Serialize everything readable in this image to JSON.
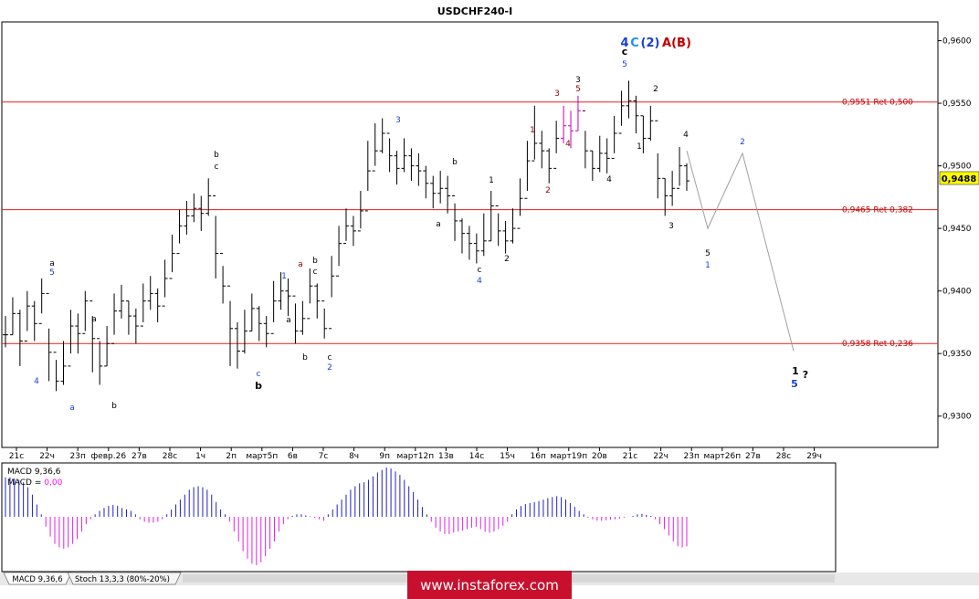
{
  "chart_data": {
    "type": "candlestick",
    "title": "USDCHF240-I",
    "current_price": "0,9488",
    "ylim": [
      0.9275,
      0.9615
    ],
    "y_ticks": [
      "0,9300",
      "0,9350",
      "0,9400",
      "0,9450",
      "0,9500",
      "0,9550",
      "0,9600"
    ],
    "x_ticks": [
      "21с",
      "22ч",
      "23п",
      "февр.26",
      "27в",
      "28с",
      "1ч",
      "2п",
      "март5п",
      "6в",
      "7с",
      "8ч",
      "9п",
      "март12п",
      "13в",
      "14с",
      "15ч",
      "16п",
      "март19п",
      "20в",
      "21с",
      "22ч",
      "23п",
      "март26п",
      "27в",
      "28с",
      "29ч"
    ],
    "fib_levels": [
      {
        "label": "0,9551 Ret 0,500",
        "value": 0.9551
      },
      {
        "label": "0,9465 Ret 0,382",
        "value": 0.9465
      },
      {
        "label": "0,9358 Ret 0,236",
        "value": 0.9358
      }
    ],
    "series": [
      {
        "closes": [
          0.9365,
          0.9382,
          0.936,
          0.9388,
          0.9374,
          0.9398,
          0.9351,
          0.9328,
          0.934,
          0.9372,
          0.9366,
          0.9392,
          0.9362,
          0.934,
          0.9358,
          0.9384,
          0.9392,
          0.938,
          0.9372,
          0.9392,
          0.9398,
          0.9388,
          0.941,
          0.943,
          0.9452,
          0.946,
          0.9466,
          0.9462,
          0.9476,
          0.943,
          0.9404,
          0.937,
          0.9352,
          0.9368,
          0.9386,
          0.9374,
          0.9366,
          0.9392,
          0.94,
          0.9396,
          0.9368,
          0.9378,
          0.9404,
          0.9392,
          0.937,
          0.9412,
          0.9438,
          0.9452,
          0.9448,
          0.9464,
          0.9496,
          0.9512,
          0.9526,
          0.9508,
          0.9498,
          0.9508,
          0.95,
          0.9496,
          0.9486,
          0.9478,
          0.9482,
          0.9476,
          0.9456,
          0.9446,
          0.9438,
          0.9432,
          0.944,
          0.9468,
          0.9448,
          0.944,
          0.945,
          0.9474,
          0.9504,
          0.9518,
          0.9512,
          0.9498,
          0.9522,
          0.9532,
          0.9528,
          0.9544,
          0.9512,
          0.9498,
          0.951,
          0.9506,
          0.9526,
          0.9548,
          0.9552,
          0.954,
          0.9522,
          0.9536,
          0.949,
          0.9476,
          0.9482,
          0.95,
          0.9488
        ],
        "lows": [
          0.9355,
          0.9365,
          0.934,
          0.9368,
          0.936,
          0.9382,
          0.9328,
          0.932,
          0.9325,
          0.935,
          0.935,
          0.9368,
          0.9335,
          0.9325,
          0.934,
          0.9365,
          0.9378,
          0.9365,
          0.9358,
          0.9375,
          0.9385,
          0.9375,
          0.9395,
          0.9415,
          0.9438,
          0.9445,
          0.9455,
          0.9448,
          0.946,
          0.941,
          0.939,
          0.934,
          0.9338,
          0.935,
          0.9368,
          0.936,
          0.9355,
          0.9375,
          0.9385,
          0.938,
          0.9358,
          0.9365,
          0.939,
          0.9378,
          0.9362,
          0.9395,
          0.942,
          0.944,
          0.9436,
          0.945,
          0.948,
          0.95,
          0.951,
          0.9495,
          0.9485,
          0.9495,
          0.9488,
          0.9484,
          0.9474,
          0.9466,
          0.947,
          0.9462,
          0.944,
          0.943,
          0.9425,
          0.9422,
          0.9428,
          0.944,
          0.9436,
          0.943,
          0.9438,
          0.946,
          0.948,
          0.9505,
          0.9498,
          0.9486,
          0.951,
          0.9518,
          0.9514,
          0.9528,
          0.9498,
          0.9488,
          0.9495,
          0.9494,
          0.951,
          0.9532,
          0.9538,
          0.9526,
          0.951,
          0.952,
          0.9474,
          0.946,
          0.9468,
          0.9484,
          0.948
        ],
        "highs": [
          0.938,
          0.9395,
          0.9385,
          0.94,
          0.9392,
          0.941,
          0.937,
          0.9345,
          0.936,
          0.9385,
          0.9382,
          0.94,
          0.938,
          0.936,
          0.9372,
          0.9398,
          0.9405,
          0.9392,
          0.9386,
          0.9406,
          0.9412,
          0.9402,
          0.9425,
          0.9445,
          0.9465,
          0.9472,
          0.9478,
          0.9476,
          0.949,
          0.946,
          0.942,
          0.9392,
          0.9375,
          0.9385,
          0.9398,
          0.9388,
          0.938,
          0.9408,
          0.9415,
          0.941,
          0.939,
          0.9392,
          0.9418,
          0.9406,
          0.9386,
          0.9428,
          0.9452,
          0.9466,
          0.946,
          0.948,
          0.952,
          0.9534,
          0.9538,
          0.9522,
          0.9512,
          0.9522,
          0.9514,
          0.951,
          0.95,
          0.9492,
          0.9496,
          0.9492,
          0.947,
          0.9458,
          0.9452,
          0.9446,
          0.9462,
          0.948,
          0.9462,
          0.9456,
          0.9466,
          0.949,
          0.952,
          0.9548,
          0.9528,
          0.9514,
          0.9536,
          0.9548,
          0.9544,
          0.9556,
          0.9528,
          0.9512,
          0.9524,
          0.9522,
          0.954,
          0.956,
          0.9568,
          0.9556,
          0.954,
          0.9548,
          0.951,
          0.949,
          0.9496,
          0.9515,
          0.9502
        ]
      }
    ],
    "projection": [
      0.9512,
      0.945,
      0.951,
      0.9352
    ],
    "wave_labels": [
      {
        "text": "4",
        "color": "#1a3fd0",
        "x": 40,
        "y": 420,
        "size": "s"
      },
      {
        "text": "a",
        "color": "#000000",
        "x": 57,
        "y": 291,
        "size": "s"
      },
      {
        "text": "5",
        "color": "#1a3fd0",
        "x": 57,
        "y": 301,
        "size": "s"
      },
      {
        "text": "a",
        "color": "#1a3fd0",
        "x": 79,
        "y": 449,
        "size": "s"
      },
      {
        "text": "a",
        "color": "#000000",
        "x": 103,
        "y": 352,
        "size": "s"
      },
      {
        "text": "b",
        "color": "#000000",
        "x": 125,
        "y": 447,
        "size": "s"
      },
      {
        "text": "b",
        "color": "#000000",
        "x": 237,
        "y": 172,
        "size": "s"
      },
      {
        "text": "c",
        "color": "#000000",
        "x": 237,
        "y": 185,
        "size": "s"
      },
      {
        "text": "c",
        "color": "#1a3fd0",
        "x": 283,
        "y": 412,
        "size": "s"
      },
      {
        "text": "b",
        "color": "#000000",
        "x": 283,
        "y": 426,
        "size": "b"
      },
      {
        "text": "1",
        "color": "#1a3fd0",
        "x": 311,
        "y": 305,
        "size": "s"
      },
      {
        "text": "a",
        "color": "#000000",
        "x": 316,
        "y": 353,
        "size": "s"
      },
      {
        "text": "a",
        "color": "#8b0000",
        "x": 329,
        "y": 292,
        "size": "s"
      },
      {
        "text": "b",
        "color": "#000000",
        "x": 345,
        "y": 288,
        "size": "s"
      },
      {
        "text": "c",
        "color": "#000000",
        "x": 345,
        "y": 300,
        "size": "s"
      },
      {
        "text": "b",
        "color": "#000000",
        "x": 334,
        "y": 394,
        "size": "s"
      },
      {
        "text": "c",
        "color": "#000000",
        "x": 361,
        "y": 394,
        "size": "s"
      },
      {
        "text": "2",
        "color": "#1a3fd0",
        "x": 361,
        "y": 405,
        "size": "s"
      },
      {
        "text": "3",
        "color": "#1a3fd0",
        "x": 436,
        "y": 134,
        "size": "s"
      },
      {
        "text": "a",
        "color": "#000000",
        "x": 480,
        "y": 248,
        "size": "s"
      },
      {
        "text": "b",
        "color": "#000000",
        "x": 498,
        "y": 180,
        "size": "s"
      },
      {
        "text": "1",
        "color": "#000000",
        "x": 538,
        "y": 200,
        "size": "s"
      },
      {
        "text": "c",
        "color": "#000000",
        "x": 525,
        "y": 298,
        "size": "s"
      },
      {
        "text": "4",
        "color": "#1a3fd0",
        "x": 525,
        "y": 310,
        "size": "s"
      },
      {
        "text": "2",
        "color": "#000000",
        "x": 555,
        "y": 286,
        "size": "s"
      },
      {
        "text": "1",
        "color": "#8b0000",
        "x": 583,
        "y": 145,
        "size": "s"
      },
      {
        "text": "2",
        "color": "#8b0000",
        "x": 600,
        "y": 211,
        "size": "s"
      },
      {
        "text": "3",
        "color": "#8b0000",
        "x": 610,
        "y": 105,
        "size": "s"
      },
      {
        "text": "4",
        "color": "#8b0000",
        "x": 622,
        "y": 160,
        "size": "s"
      },
      {
        "text": "3",
        "color": "#000000",
        "x": 633,
        "y": 90,
        "size": "s"
      },
      {
        "text": "5",
        "color": "#8b0000",
        "x": 633,
        "y": 100,
        "size": "s"
      },
      {
        "text": "4",
        "color": "#000000",
        "x": 667,
        "y": 199,
        "size": "s"
      },
      {
        "text": "1",
        "color": "#000000",
        "x": 700,
        "y": 163,
        "size": "s"
      },
      {
        "text": "2",
        "color": "#000000",
        "x": 718,
        "y": 100,
        "size": "s"
      },
      {
        "text": "c",
        "color": "#000000",
        "x": 684,
        "y": 60,
        "size": "b"
      },
      {
        "text": "5",
        "color": "#1a3fd0",
        "x": 684,
        "y": 73,
        "size": "s"
      },
      {
        "text": "4",
        "color": "#000000",
        "x": 751,
        "y": 150,
        "size": "s"
      },
      {
        "text": "3",
        "color": "#000000",
        "x": 735,
        "y": 250,
        "size": "s"
      },
      {
        "text": "5",
        "color": "#000000",
        "x": 775,
        "y": 280,
        "size": "s"
      },
      {
        "text": "1",
        "color": "#1a3fd0",
        "x": 775,
        "y": 293,
        "size": "s"
      },
      {
        "text": "2",
        "color": "#1a3fd0",
        "x": 813,
        "y": 158,
        "size": "s"
      },
      {
        "text": "1",
        "color": "#000000",
        "x": 871,
        "y": 410,
        "size": "b"
      },
      {
        "text": "5",
        "color": "#1a3fd0",
        "x": 870,
        "y": 424,
        "size": "b"
      },
      {
        "text": "?",
        "color": "#000000",
        "x": 882,
        "y": 414,
        "size": "b"
      }
    ],
    "headline_labels": [
      {
        "text": "4",
        "color": "#1a3fd0"
      },
      {
        "text": "C",
        "color": "#1e90ff"
      },
      {
        "text": "(2)",
        "color": "#1a3fd0"
      },
      {
        "text": "A",
        "color": "#c00000"
      },
      {
        "text": "(B)",
        "color": "#c00000"
      }
    ],
    "indicator": {
      "labels": [
        "MACD 9,36,6",
        "MACD = "
      ],
      "zero_label": "0,00",
      "values": [
        0.8,
        0.8,
        0.78,
        0.75,
        0.7,
        0.6,
        0.45,
        0.25,
        0.05,
        -0.2,
        -0.4,
        -0.55,
        -0.62,
        -0.65,
        -0.62,
        -0.55,
        -0.45,
        -0.3,
        -0.15,
        -0.05,
        0.05,
        0.12,
        0.18,
        0.22,
        0.24,
        0.22,
        0.18,
        0.15,
        0.12,
        0.05,
        -0.05,
        -0.1,
        -0.12,
        -0.12,
        -0.1,
        -0.05,
        0.05,
        0.15,
        0.25,
        0.35,
        0.45,
        0.55,
        0.6,
        0.62,
        0.6,
        0.55,
        0.45,
        0.3,
        0.15,
        0.05,
        -0.1,
        -0.3,
        -0.5,
        -0.7,
        -0.85,
        -0.95,
        -0.98,
        -0.92,
        -0.8,
        -0.65,
        -0.5,
        -0.3,
        -0.15,
        -0.05,
        0.02,
        0.05,
        0.05,
        0.03,
        0.01,
        -0.02,
        -0.05,
        -0.08,
        0.05,
        0.15,
        0.25,
        0.35,
        0.45,
        0.55,
        0.62,
        0.68,
        0.7,
        0.75,
        0.82,
        0.9,
        0.95,
        1.0,
        0.98,
        0.92,
        0.85,
        0.75,
        0.62,
        0.5,
        0.35,
        0.2,
        0.05,
        -0.1,
        -0.22,
        -0.3,
        -0.35,
        -0.35,
        -0.32,
        -0.3,
        -0.28,
        -0.25,
        -0.22,
        -0.2,
        -0.25,
        -0.3,
        -0.32,
        -0.3,
        -0.25,
        -0.18,
        -0.1,
        0.05,
        0.15,
        0.22,
        0.26,
        0.28,
        0.3,
        0.32,
        0.35,
        0.38,
        0.4,
        0.42,
        0.4,
        0.35,
        0.28,
        0.2,
        0.12,
        0.05,
        -0.02,
        -0.05,
        -0.08,
        -0.08,
        -0.07,
        -0.06,
        -0.05,
        -0.04,
        -0.02,
        0.0,
        0.02,
        0.05,
        0.06,
        0.04,
        0.02,
        -0.05,
        -0.15,
        -0.25,
        -0.38,
        -0.5,
        -0.6,
        -0.62,
        -0.6
      ]
    },
    "tabs": [
      "MACD 9,36,6",
      "Stoch 13,3,3 (80%-20%)"
    ],
    "watermark": "www.instaforex.com"
  }
}
